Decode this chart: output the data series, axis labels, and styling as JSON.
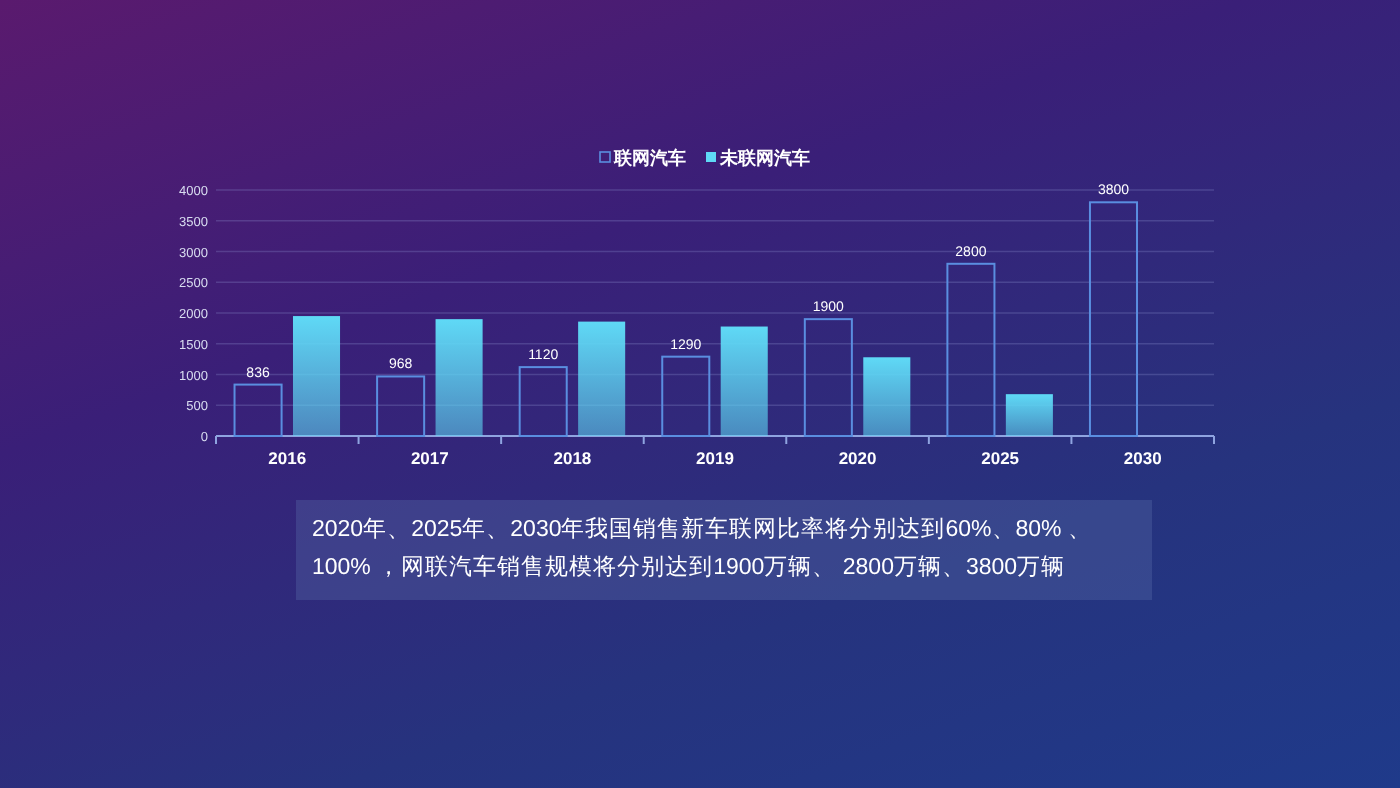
{
  "chart_data": {
    "type": "bar",
    "categories": [
      "2016",
      "2017",
      "2018",
      "2019",
      "2020",
      "2025",
      "2030"
    ],
    "series": [
      {
        "name": "联网汽车",
        "color": "#5a8ee0",
        "values": [
          836,
          968,
          1120,
          1290,
          1900,
          2800,
          3800
        ],
        "value_labels": [
          "836",
          "968",
          "1120",
          "1290",
          "1900",
          "2800",
          "3800"
        ]
      },
      {
        "name": "未联网汽车",
        "color": "#5fd9f6",
        "values": [
          1950,
          1900,
          1860,
          1780,
          1280,
          680,
          null
        ]
      }
    ],
    "ylim": [
      0,
      4000
    ],
    "yticks": [
      0,
      500,
      1000,
      1500,
      2000,
      2500,
      3000,
      3500,
      4000
    ],
    "grid": "y",
    "legend": "top",
    "annotations": [
      "2020年、2025年、2030年我国销售新车联网比率将分别达到60%、80% 、100% ，网联汽车销售规模将分别达到1900万辆、 2800万辆、3800万辆"
    ]
  }
}
